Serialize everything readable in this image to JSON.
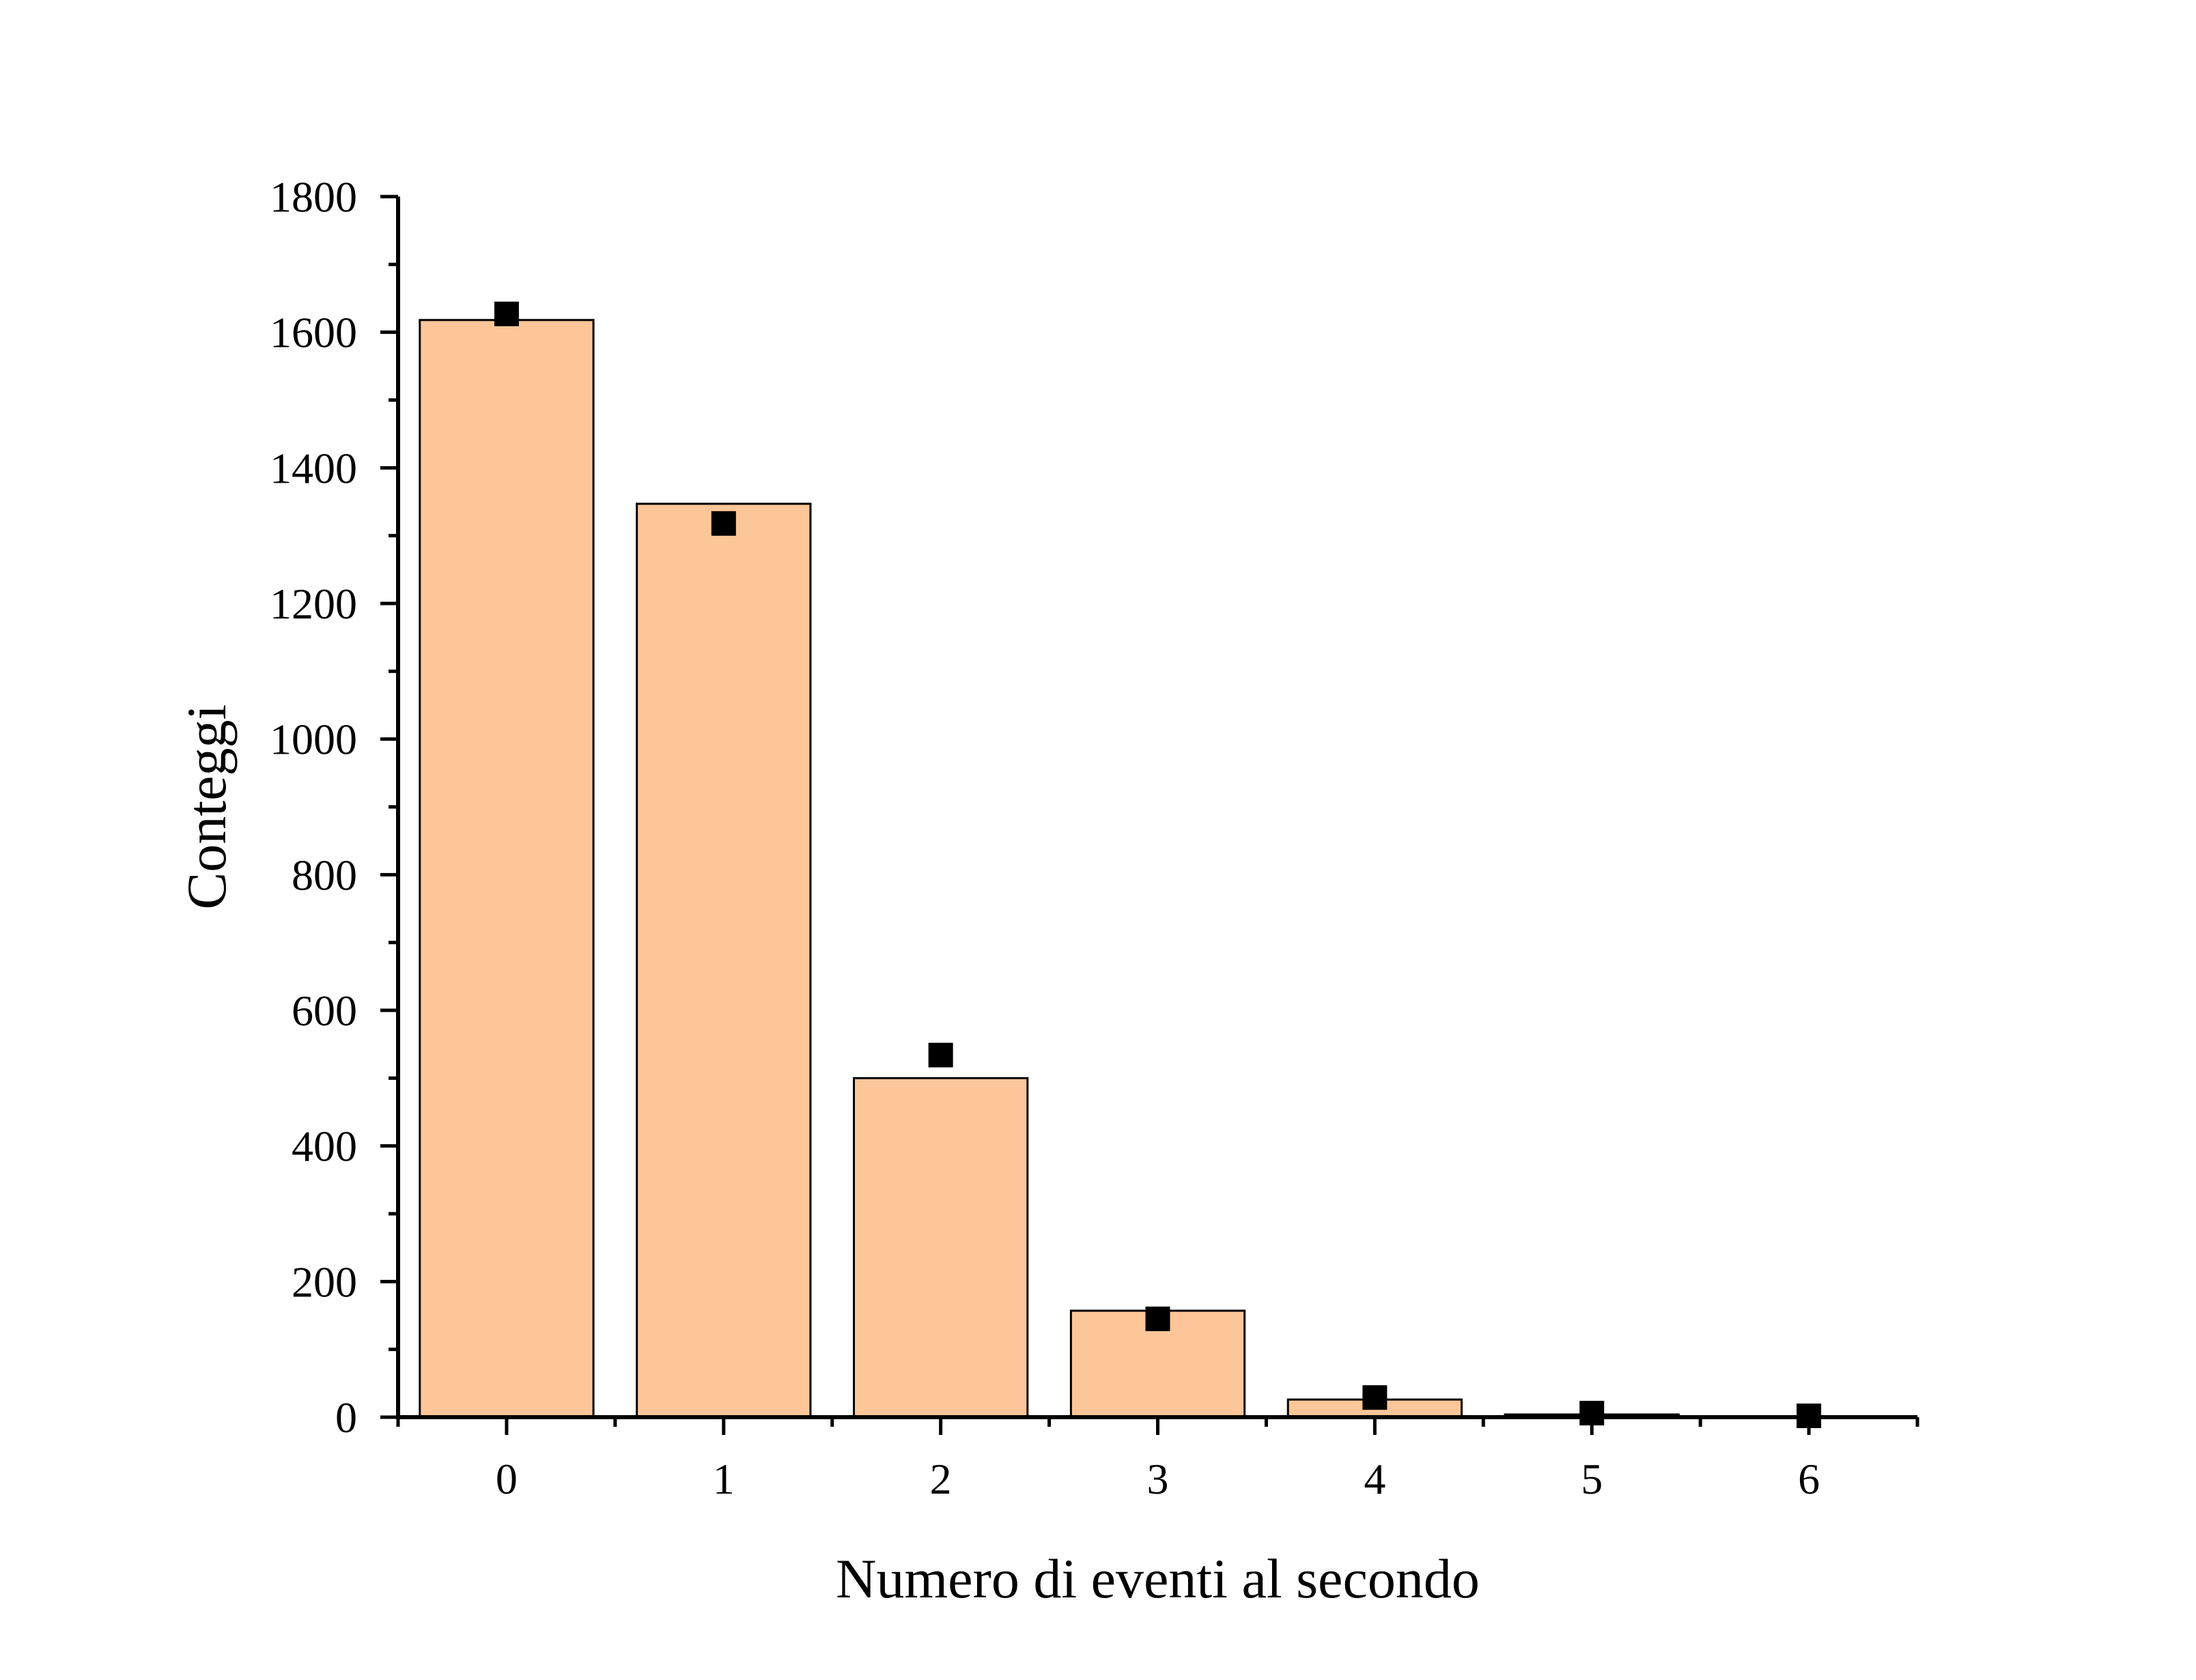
{
  "chart_data": {
    "type": "bar",
    "categories": [
      "0",
      "1",
      "2",
      "3",
      "4",
      "5",
      "6"
    ],
    "series": [
      {
        "type": "bar",
        "values": [
          1618,
          1347,
          500,
          157,
          26,
          4,
          1
        ]
      },
      {
        "type": "scatter",
        "values": [
          1627,
          1318,
          534,
          145,
          29,
          6,
          2
        ]
      }
    ],
    "xlabel": "Numero di eventi al secondo",
    "ylabel": "Conteggi",
    "ylim": [
      0,
      1800
    ],
    "yticks": [
      0,
      200,
      400,
      600,
      800,
      1000,
      1200,
      1400,
      1600,
      1800
    ],
    "xlim": [
      -0.5,
      6.5
    ],
    "grid": false,
    "colors": {
      "bar_fill": "#FDC698",
      "bar_stroke": "#000000",
      "marker": "#000000"
    }
  }
}
